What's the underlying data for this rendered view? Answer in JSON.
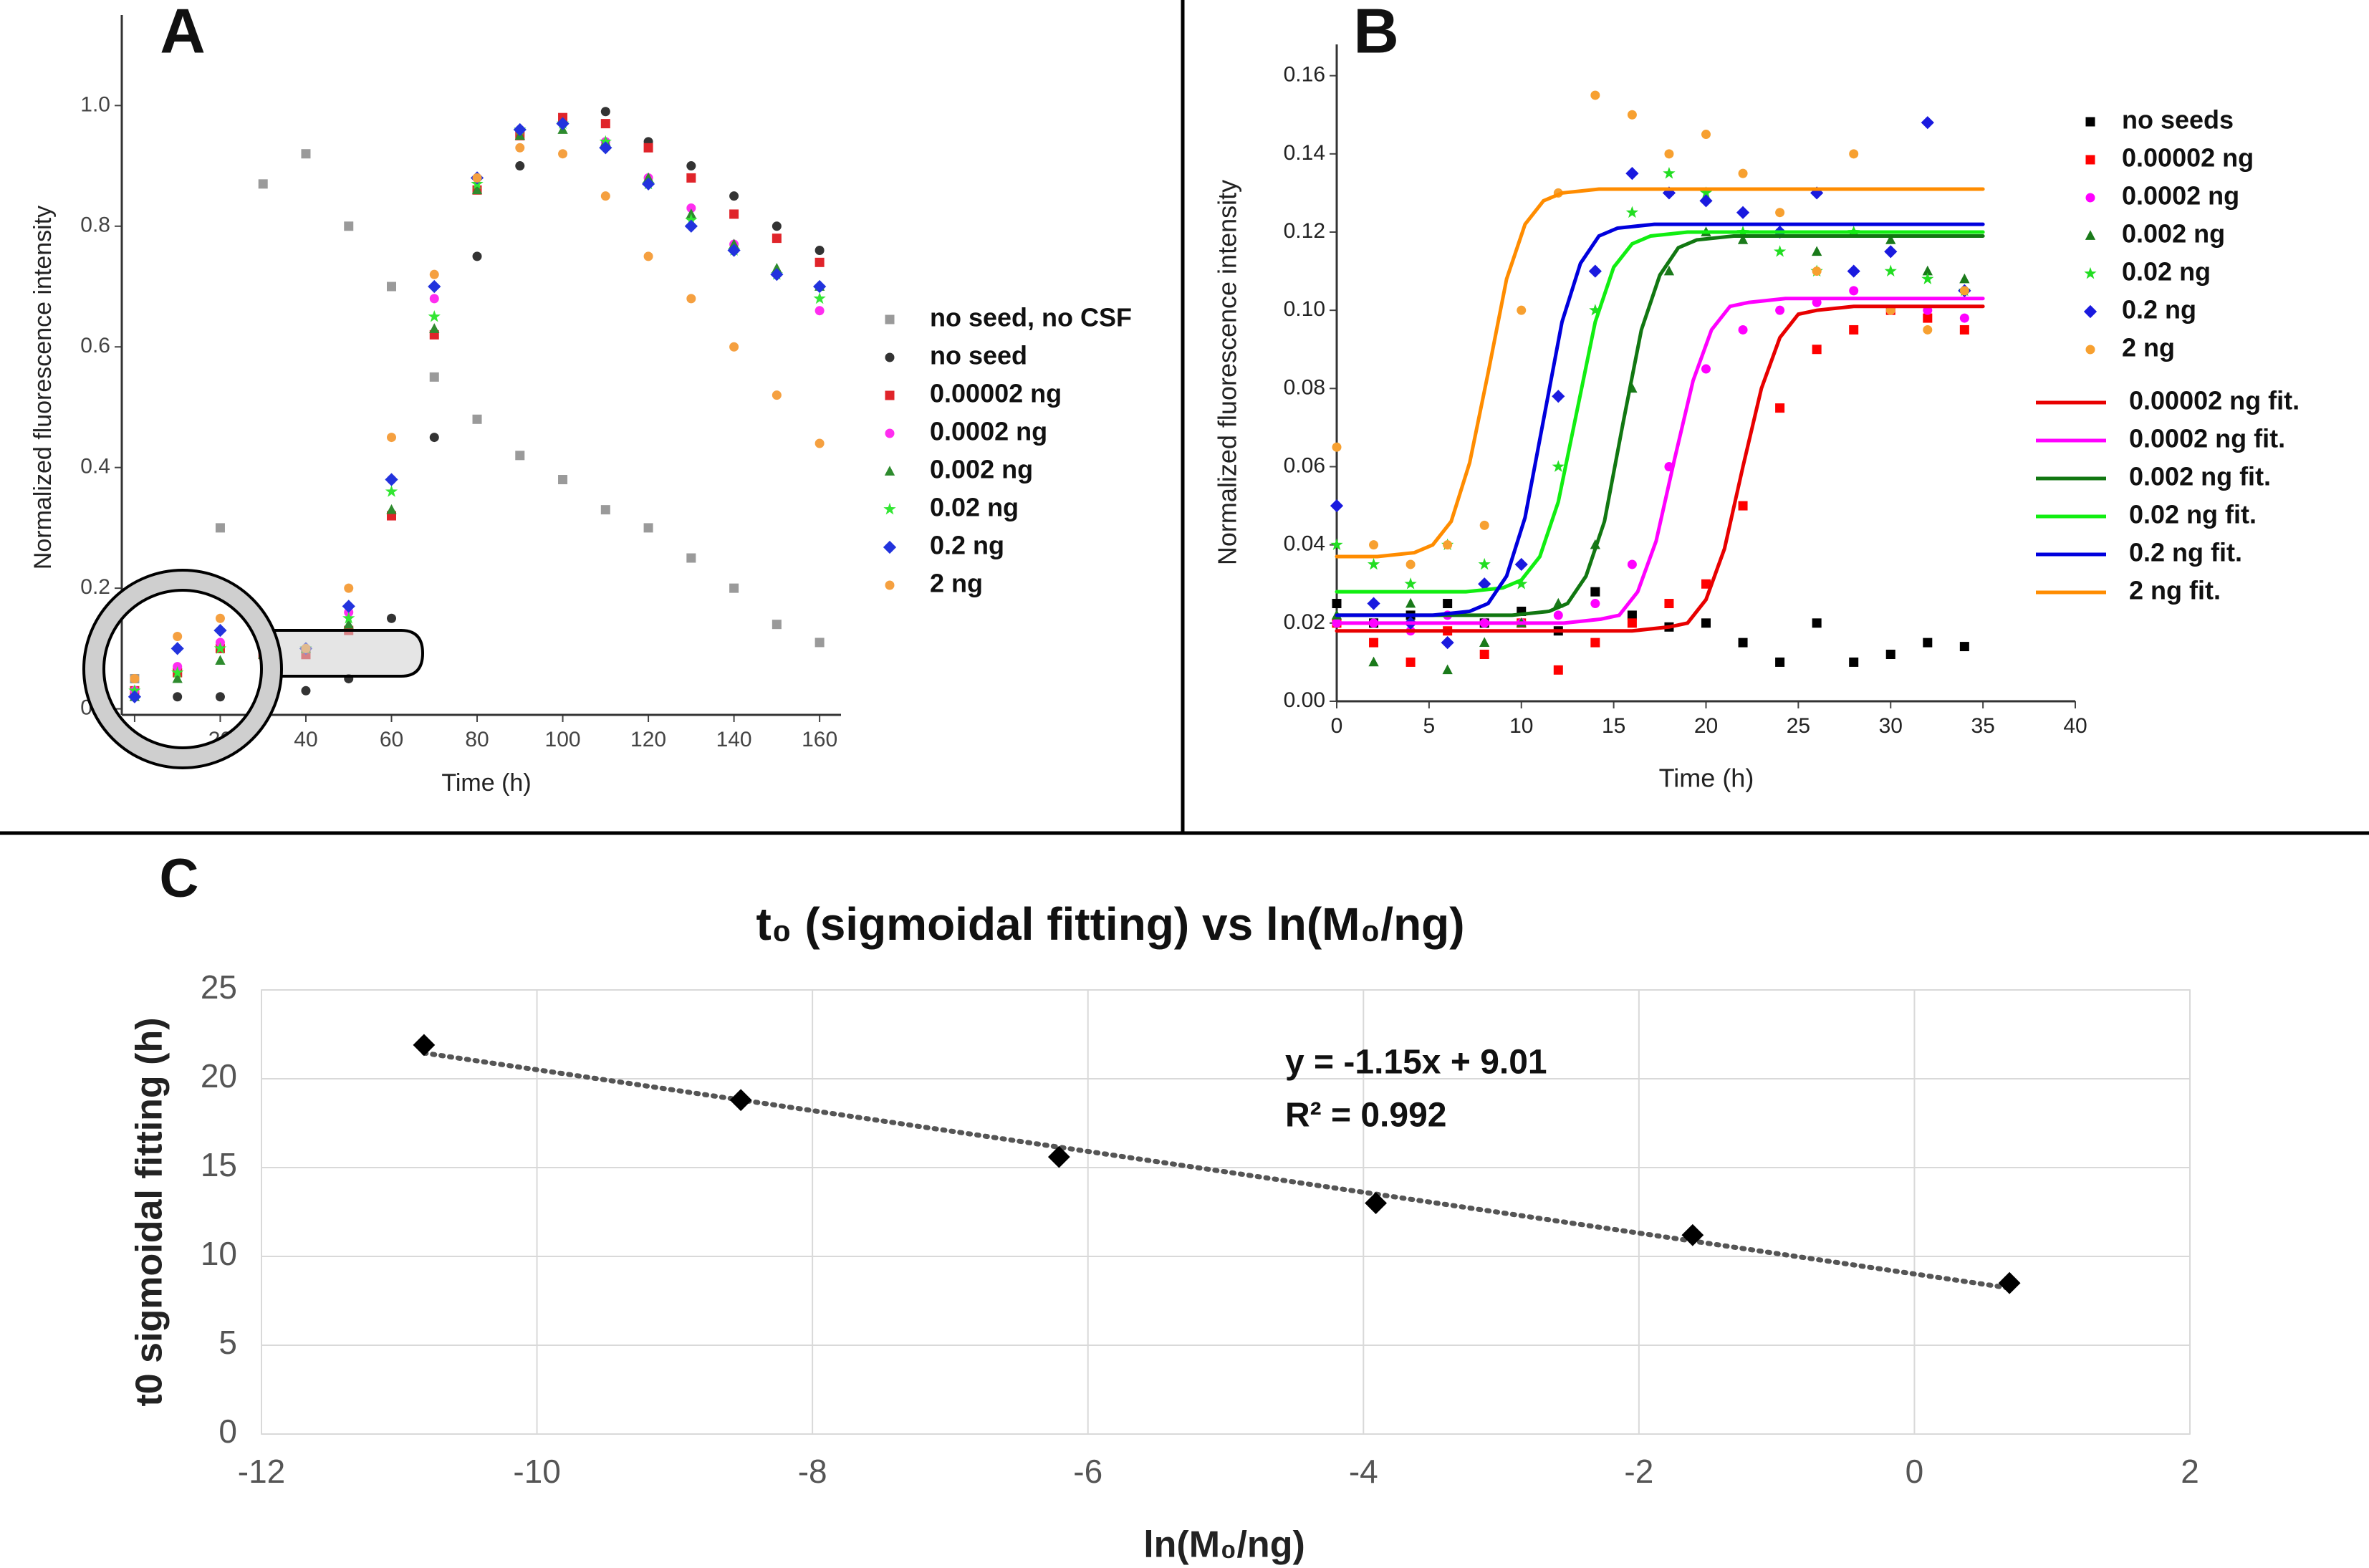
{
  "chart_data": [
    {
      "type": "scatter",
      "label": "A",
      "x_label": "Time (h)",
      "y_label": "Normalized fluorescence intensity",
      "xlim": [
        -3,
        165
      ],
      "ylim": [
        -0.01,
        1.15
      ],
      "xticks": [
        0,
        20,
        40,
        60,
        80,
        100,
        120,
        140,
        160
      ],
      "yticks": [
        {
          "value": 0,
          "label": "0.0"
        },
        0.2,
        0.4,
        0.6,
        0.8,
        {
          "value": 1,
          "label": "1.0"
        }
      ],
      "grid": false,
      "x": [
        0,
        10,
        20,
        30,
        40,
        50,
        60,
        70,
        80,
        90,
        100,
        110,
        120,
        130,
        140,
        150,
        160
      ],
      "series": [
        {
          "name": "no seed, no CSF",
          "color": "#9a9a9a",
          "marker": "square",
          "values": [
            0.05,
            0.06,
            0.3,
            0.87,
            0.92,
            0.8,
            0.7,
            0.55,
            0.48,
            0.42,
            0.38,
            0.33,
            0.3,
            0.25,
            0.2,
            0.14,
            0.11
          ]
        },
        {
          "name": "no seed",
          "color": "#333333",
          "marker": "circle",
          "values": [
            0.03,
            0.02,
            0.02,
            0.03,
            0.03,
            0.05,
            0.15,
            0.45,
            0.75,
            0.9,
            0.97,
            0.99,
            0.94,
            0.9,
            0.85,
            0.8,
            0.76
          ]
        },
        {
          "name": "0.00002 ng",
          "color": "#e0242a",
          "marker": "square",
          "values": [
            0.03,
            0.06,
            0.1,
            0.09,
            0.09,
            0.13,
            0.32,
            0.62,
            0.86,
            0.95,
            0.98,
            0.97,
            0.93,
            0.88,
            0.82,
            0.78,
            0.74
          ]
        },
        {
          "name": "0.0002 ng",
          "color": "#ff2df0",
          "marker": "circle",
          "values": [
            0.03,
            0.07,
            0.11,
            0.1,
            0.1,
            0.16,
            0.38,
            0.68,
            0.88,
            0.96,
            0.97,
            0.94,
            0.88,
            0.83,
            0.77,
            0.72,
            0.66
          ]
        },
        {
          "name": "0.002 ng",
          "color": "#2e8b2e",
          "marker": "triangle",
          "values": [
            0.02,
            0.05,
            0.08,
            0.09,
            0.1,
            0.14,
            0.33,
            0.63,
            0.86,
            0.95,
            0.96,
            0.94,
            0.88,
            0.82,
            0.77,
            0.73,
            0.7
          ]
        },
        {
          "name": "0.02 ng",
          "color": "#33e633",
          "marker": "star",
          "values": [
            0.03,
            0.06,
            0.1,
            0.1,
            0.1,
            0.15,
            0.36,
            0.65,
            0.87,
            0.96,
            0.97,
            0.94,
            0.87,
            0.81,
            0.76,
            0.72,
            0.68
          ]
        },
        {
          "name": "0.2 ng",
          "color": "#2233dd",
          "marker": "diamond",
          "values": [
            0.02,
            0.1,
            0.13,
            0.11,
            0.1,
            0.17,
            0.38,
            0.7,
            0.88,
            0.96,
            0.97,
            0.93,
            0.87,
            0.8,
            0.76,
            0.72,
            0.7
          ]
        },
        {
          "name": "2 ng",
          "color": "#f5a040",
          "marker": "circle",
          "values": [
            0.05,
            0.12,
            0.15,
            0.12,
            0.1,
            0.2,
            0.45,
            0.72,
            0.88,
            0.93,
            0.92,
            0.85,
            0.75,
            0.68,
            0.6,
            0.52,
            0.44
          ]
        }
      ]
    },
    {
      "type": "scatter",
      "label": "B",
      "x_label": "Time (h)",
      "y_label": "Normalized fluorescence intensity",
      "xlim": [
        0,
        40
      ],
      "ylim": [
        0,
        0.168
      ],
      "xticks": [
        0,
        5,
        10,
        15,
        20,
        25,
        30,
        35,
        40
      ],
      "yticks": [
        {
          "value": 0,
          "label": "0.00"
        },
        {
          "value": 0.02,
          "label": "0.02"
        },
        {
          "value": 0.04,
          "label": "0.04"
        },
        {
          "value": 0.06,
          "label": "0.06"
        },
        {
          "value": 0.08,
          "label": "0.08"
        },
        {
          "value": 0.1,
          "label": "0.10"
        },
        {
          "value": 0.12,
          "label": "0.12"
        },
        {
          "value": 0.14,
          "label": "0.14"
        },
        {
          "value": 0.16,
          "label": "0.16"
        }
      ],
      "grid": false,
      "x": [
        0,
        2,
        4,
        6,
        8,
        10,
        12,
        14,
        16,
        18,
        20,
        22,
        24,
        26,
        28,
        30,
        32,
        34
      ],
      "series": [
        {
          "name": "no seeds",
          "color": "#000000",
          "marker": "square",
          "values": [
            0.025,
            0.02,
            0.022,
            0.025,
            0.02,
            0.023,
            0.018,
            0.028,
            0.022,
            0.019,
            0.02,
            0.015,
            0.01,
            0.02,
            0.01,
            0.012,
            0.015,
            0.014
          ]
        },
        {
          "name": "0.00002 ng",
          "color": "#ff0000",
          "marker": "square",
          "values": [
            0.02,
            0.015,
            0.01,
            0.018,
            0.012,
            0.02,
            0.008,
            0.015,
            0.02,
            0.025,
            0.03,
            0.05,
            0.075,
            0.09,
            0.095,
            0.1,
            0.098,
            0.095
          ]
        },
        {
          "name": "0.0002 ng",
          "color": "#ff00ff",
          "marker": "circle",
          "values": [
            0.02,
            0.02,
            0.018,
            0.022,
            0.02,
            0.02,
            0.022,
            0.025,
            0.035,
            0.06,
            0.085,
            0.095,
            0.1,
            0.102,
            0.105,
            0.1,
            0.1,
            0.098
          ]
        },
        {
          "name": "0.002 ng",
          "color": "#1a7a1a",
          "marker": "triangle",
          "values": [
            0.022,
            0.01,
            0.025,
            0.008,
            0.015,
            0.02,
            0.025,
            0.04,
            0.08,
            0.11,
            0.12,
            0.118,
            0.12,
            0.115,
            0.12,
            0.118,
            0.11,
            0.108
          ]
        },
        {
          "name": "0.02 ng",
          "color": "#22dd22",
          "marker": "star",
          "values": [
            0.04,
            0.035,
            0.03,
            0.04,
            0.035,
            0.03,
            0.06,
            0.1,
            0.125,
            0.135,
            0.13,
            0.12,
            0.115,
            0.11,
            0.12,
            0.11,
            0.108,
            0.105
          ]
        },
        {
          "name": "0.2 ng",
          "color": "#1a1adf",
          "marker": "diamond",
          "values": [
            0.05,
            0.025,
            0.02,
            0.015,
            0.03,
            0.035,
            0.078,
            0.11,
            0.135,
            0.13,
            0.128,
            0.125,
            0.12,
            0.13,
            0.11,
            0.115,
            0.148,
            0.105
          ]
        },
        {
          "name": "2 ng",
          "color": "#f7a030",
          "marker": "circle",
          "values": [
            0.065,
            0.04,
            0.035,
            0.04,
            0.045,
            0.1,
            0.13,
            0.155,
            0.15,
            0.14,
            0.145,
            0.135,
            0.125,
            0.11,
            0.14,
            0.1,
            0.095,
            0.105
          ]
        },
        {
          "name": "0.00002 ng fit.",
          "color": "#e80000",
          "style": "line",
          "x": [
            0,
            16,
            18,
            19,
            20,
            21,
            22,
            23,
            24,
            25,
            26,
            28,
            35
          ],
          "values": [
            0.018,
            0.018,
            0.019,
            0.02,
            0.026,
            0.039,
            0.06,
            0.08,
            0.093,
            0.099,
            0.1,
            0.101,
            0.101
          ]
        },
        {
          "name": "0.0002 ng fit.",
          "color": "#ff00ff",
          "style": "line",
          "x": [
            0,
            12.3,
            14.3,
            15.3,
            16.3,
            17.3,
            18.3,
            19.3,
            20.3,
            21.3,
            22.3,
            24.3,
            35
          ],
          "values": [
            0.02,
            0.02,
            0.021,
            0.022,
            0.028,
            0.041,
            0.062,
            0.082,
            0.095,
            0.101,
            0.102,
            0.103,
            0.103
          ]
        },
        {
          "name": "0.002 ng fit.",
          "color": "#117711",
          "style": "line",
          "x": [
            0,
            9.5,
            11.5,
            12.5,
            13.5,
            14.5,
            15.5,
            16.5,
            17.5,
            18.5,
            19.5,
            21.5,
            35
          ],
          "values": [
            0.022,
            0.022,
            0.023,
            0.025,
            0.032,
            0.046,
            0.071,
            0.095,
            0.109,
            0.116,
            0.118,
            0.119,
            0.119
          ]
        },
        {
          "name": "0.02 ng fit.",
          "color": "#11ee11",
          "style": "line",
          "x": [
            0,
            7,
            9,
            10,
            11,
            12,
            13,
            14,
            15,
            16,
            17,
            19,
            35
          ],
          "values": [
            0.028,
            0.028,
            0.029,
            0.031,
            0.037,
            0.051,
            0.074,
            0.097,
            0.111,
            0.117,
            0.119,
            0.12,
            0.12
          ]
        },
        {
          "name": "0.2 ng fit.",
          "color": "#0000dd",
          "style": "line",
          "x": [
            0,
            5.2,
            7.2,
            8.2,
            9.2,
            10.2,
            11.2,
            12.2,
            13.2,
            14.2,
            15.2,
            17.2,
            35
          ],
          "values": [
            0.022,
            0.022,
            0.023,
            0.025,
            0.032,
            0.047,
            0.072,
            0.097,
            0.112,
            0.119,
            0.121,
            0.122,
            0.122
          ]
        },
        {
          "name": "2 ng fit.",
          "color": "#ff8c00",
          "style": "line",
          "x": [
            0,
            2.2,
            4.2,
            5.2,
            6.2,
            7.2,
            8.2,
            9.2,
            10.2,
            11.2,
            12.2,
            14.2,
            35
          ],
          "values": [
            0.037,
            0.037,
            0.038,
            0.04,
            0.046,
            0.061,
            0.084,
            0.108,
            0.122,
            0.128,
            0.13,
            0.131,
            0.131
          ]
        }
      ]
    },
    {
      "type": "scatter",
      "label": "C",
      "title": "t₀ (sigmoidal fitting) vs ln(M₀/ng)",
      "x_label": "ln(M₀/ng)",
      "y_label": "t0 sigmoidal fitting (h)",
      "xlim": [
        -12,
        2
      ],
      "ylim": [
        0,
        25
      ],
      "xticks": [
        -12,
        -10,
        -8,
        -6,
        -4,
        -2,
        0,
        2
      ],
      "yticks": [
        0,
        5,
        10,
        15,
        20,
        25
      ],
      "grid": true,
      "annotations": [
        "y = -1.15x + 9.01",
        "R² = 0.992"
      ],
      "series": [
        {
          "color": "#555555",
          "style": "dotted",
          "x": [
            -10.82,
            0.69
          ],
          "values": [
            21.45,
            8.22
          ]
        },
        {
          "color": "#000000",
          "marker": "diamond",
          "x": [
            -10.82,
            -8.52,
            -6.21,
            -3.91,
            -1.61,
            0.69
          ],
          "values": [
            21.9,
            18.8,
            15.6,
            13.0,
            11.2,
            8.5
          ]
        }
      ]
    }
  ]
}
